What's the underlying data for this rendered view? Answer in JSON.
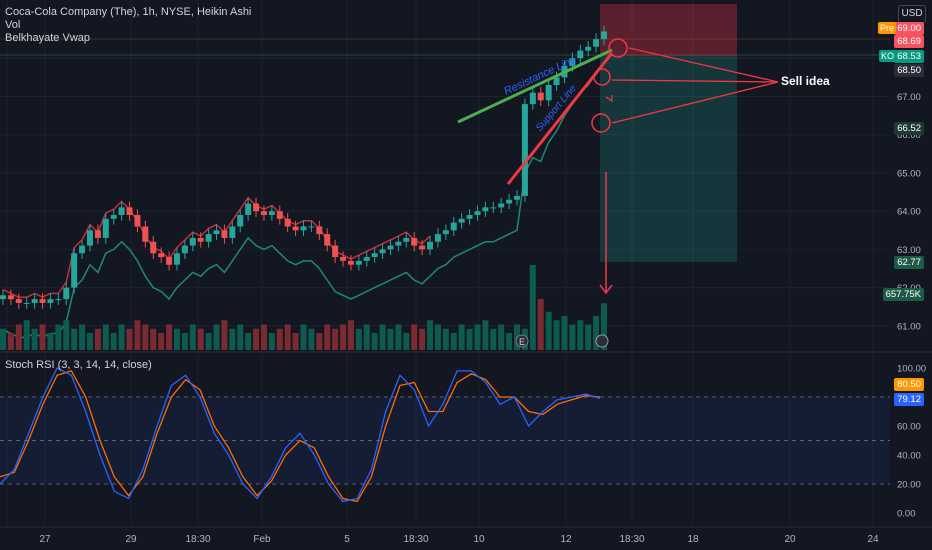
{
  "header": {
    "title": "Coca-Cola Company (The), 1h, NYSE, Heikin Ashi",
    "indicators": [
      "Vol",
      "Belkhayate Vwap"
    ],
    "currency": "USD"
  },
  "price_tags": [
    {
      "label": "",
      "value": "69.00",
      "color": "#f7525f",
      "side": "Pre",
      "side_color": "#ff9800"
    },
    {
      "label": "",
      "value": "68.69",
      "color": "#f7525f"
    },
    {
      "label": "",
      "value": "68.53",
      "color": "#089981",
      "side": "KO",
      "side_color": "#089981"
    },
    {
      "label": "",
      "value": "68.50",
      "color": "#2a2e39"
    },
    {
      "label": "",
      "value": "66.52",
      "color": "#1e3a34"
    },
    {
      "label": "",
      "value": "62.77",
      "color": "#1e5b46"
    },
    {
      "label": "",
      "value": "657.75K",
      "color": "#1e5b46"
    }
  ],
  "annotations": {
    "resistance": "Resistance Line",
    "support": "Support Line",
    "sell_idea": "Sell idea",
    "earnings_badge": "E"
  },
  "rsi": {
    "title": "Stoch RSI (3, 3, 14, 14, close)",
    "tags": [
      {
        "value": "80.50",
        "color": "#ff9800"
      },
      {
        "value": "79.12",
        "color": "#2962ff"
      }
    ],
    "ticks": [
      "100.00",
      "80.00",
      "60.00",
      "40.00",
      "20.00",
      "0.00"
    ]
  },
  "chart_data": {
    "type": "candlestick",
    "price_axis_ticks": [
      "68.00",
      "67.00",
      "66.00",
      "65.00",
      "64.00",
      "63.00",
      "62.00",
      "61.00"
    ],
    "time_axis_ticks": [
      "27",
      "29",
      "18:30",
      "Feb",
      "5",
      "18:30",
      "10",
      "12",
      "18:30",
      "18",
      "20",
      "24"
    ],
    "ylim": [
      60.5,
      69.0
    ],
    "close_path": [
      61.8,
      61.7,
      61.6,
      61.6,
      61.7,
      61.6,
      61.7,
      61.7,
      62.0,
      62.9,
      63.1,
      63.5,
      63.3,
      63.8,
      63.9,
      64.1,
      63.9,
      63.6,
      63.2,
      62.9,
      62.8,
      62.6,
      62.9,
      63.1,
      63.3,
      63.2,
      63.4,
      63.5,
      63.3,
      63.6,
      63.9,
      64.2,
      64.0,
      63.9,
      64.0,
      63.8,
      63.6,
      63.5,
      63.6,
      63.6,
      63.4,
      63.1,
      62.8,
      62.7,
      62.6,
      62.7,
      62.8,
      62.9,
      63.0,
      63.1,
      63.2,
      63.3,
      63.1,
      63.0,
      63.2,
      63.4,
      63.5,
      63.7,
      63.8,
      63.9,
      64.0,
      64.1,
      64.1,
      64.2,
      64.3,
      64.4,
      66.8,
      67.1,
      66.9,
      67.3,
      67.5,
      67.8,
      68.0,
      68.2,
      68.3,
      68.5,
      68.7
    ],
    "volume_path": [
      0.25,
      0.2,
      0.3,
      0.35,
      0.25,
      0.3,
      0.2,
      0.3,
      0.35,
      0.25,
      0.3,
      0.2,
      0.25,
      0.3,
      0.2,
      0.3,
      0.25,
      0.35,
      0.3,
      0.25,
      0.2,
      0.3,
      0.25,
      0.2,
      0.3,
      0.25,
      0.2,
      0.3,
      0.35,
      0.25,
      0.3,
      0.2,
      0.25,
      0.3,
      0.2,
      0.25,
      0.3,
      0.2,
      0.3,
      0.25,
      0.2,
      0.3,
      0.25,
      0.3,
      0.35,
      0.25,
      0.3,
      0.2,
      0.3,
      0.25,
      0.3,
      0.2,
      0.3,
      0.25,
      0.35,
      0.3,
      0.25,
      0.2,
      0.3,
      0.25,
      0.3,
      0.35,
      0.25,
      0.3,
      0.2,
      0.3,
      0.25,
      1.0,
      0.6,
      0.45,
      0.35,
      0.4,
      0.3,
      0.35,
      0.3,
      0.4,
      0.55
    ],
    "rsi_k": [
      20,
      30,
      55,
      80,
      100,
      95,
      70,
      40,
      15,
      10,
      30,
      60,
      88,
      95,
      80,
      55,
      40,
      20,
      10,
      25,
      45,
      55,
      40,
      20,
      8,
      10,
      30,
      70,
      95,
      85,
      60,
      75,
      98,
      98,
      90,
      75,
      80,
      60,
      70,
      78,
      80,
      82,
      79
    ],
    "rsi_d": [
      25,
      28,
      50,
      75,
      95,
      98,
      80,
      50,
      25,
      12,
      25,
      55,
      80,
      92,
      85,
      60,
      45,
      25,
      12,
      22,
      40,
      50,
      45,
      25,
      10,
      8,
      25,
      60,
      88,
      90,
      70,
      70,
      90,
      96,
      92,
      80,
      80,
      70,
      68,
      75,
      78,
      81,
      80
    ]
  }
}
